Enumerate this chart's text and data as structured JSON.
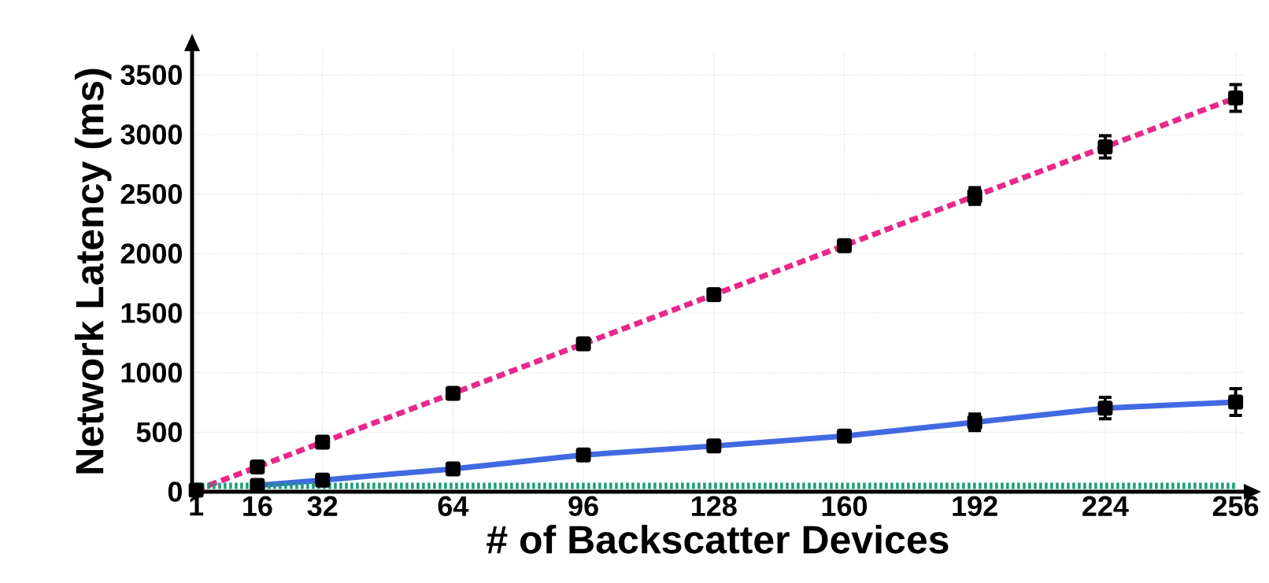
{
  "chart_data": {
    "type": "line",
    "xlabel": "# of Backscatter Devices",
    "ylabel": "Network Latency (ms)",
    "x": [
      1,
      16,
      32,
      64,
      96,
      128,
      160,
      192,
      224,
      256
    ],
    "series": [
      {
        "color": "#e8288a",
        "line_style": "dashed",
        "marker": "square",
        "values": [
          13,
          208,
          416,
          826,
          1242,
          1655,
          2067,
          2483,
          2896,
          3307
        ],
        "errors": [
          null,
          null,
          null,
          null,
          null,
          null,
          null,
          70,
          93,
          112
        ]
      },
      {
        "color": "#4169e1",
        "line_style": "solid",
        "marker": "square",
        "values": [
          null,
          53,
          97,
          192,
          309,
          384,
          467,
          583,
          702,
          753
        ],
        "errors": [
          null,
          null,
          null,
          null,
          null,
          null,
          null,
          70,
          90,
          113
        ]
      },
      {
        "color": "#1a9e77",
        "line_style": "dotted",
        "marker": "none",
        "values": [
          50,
          50,
          50,
          50,
          50,
          50,
          50,
          50,
          50,
          50
        ]
      }
    ],
    "xlim": [
      0,
      258
    ],
    "ylim": [
      0,
      3700
    ],
    "xticks": [
      1,
      16,
      32,
      64,
      96,
      128,
      160,
      192,
      224,
      256
    ],
    "yticks": [
      0,
      500,
      1000,
      1500,
      2000,
      2500,
      3000,
      3500
    ],
    "grid": true
  }
}
